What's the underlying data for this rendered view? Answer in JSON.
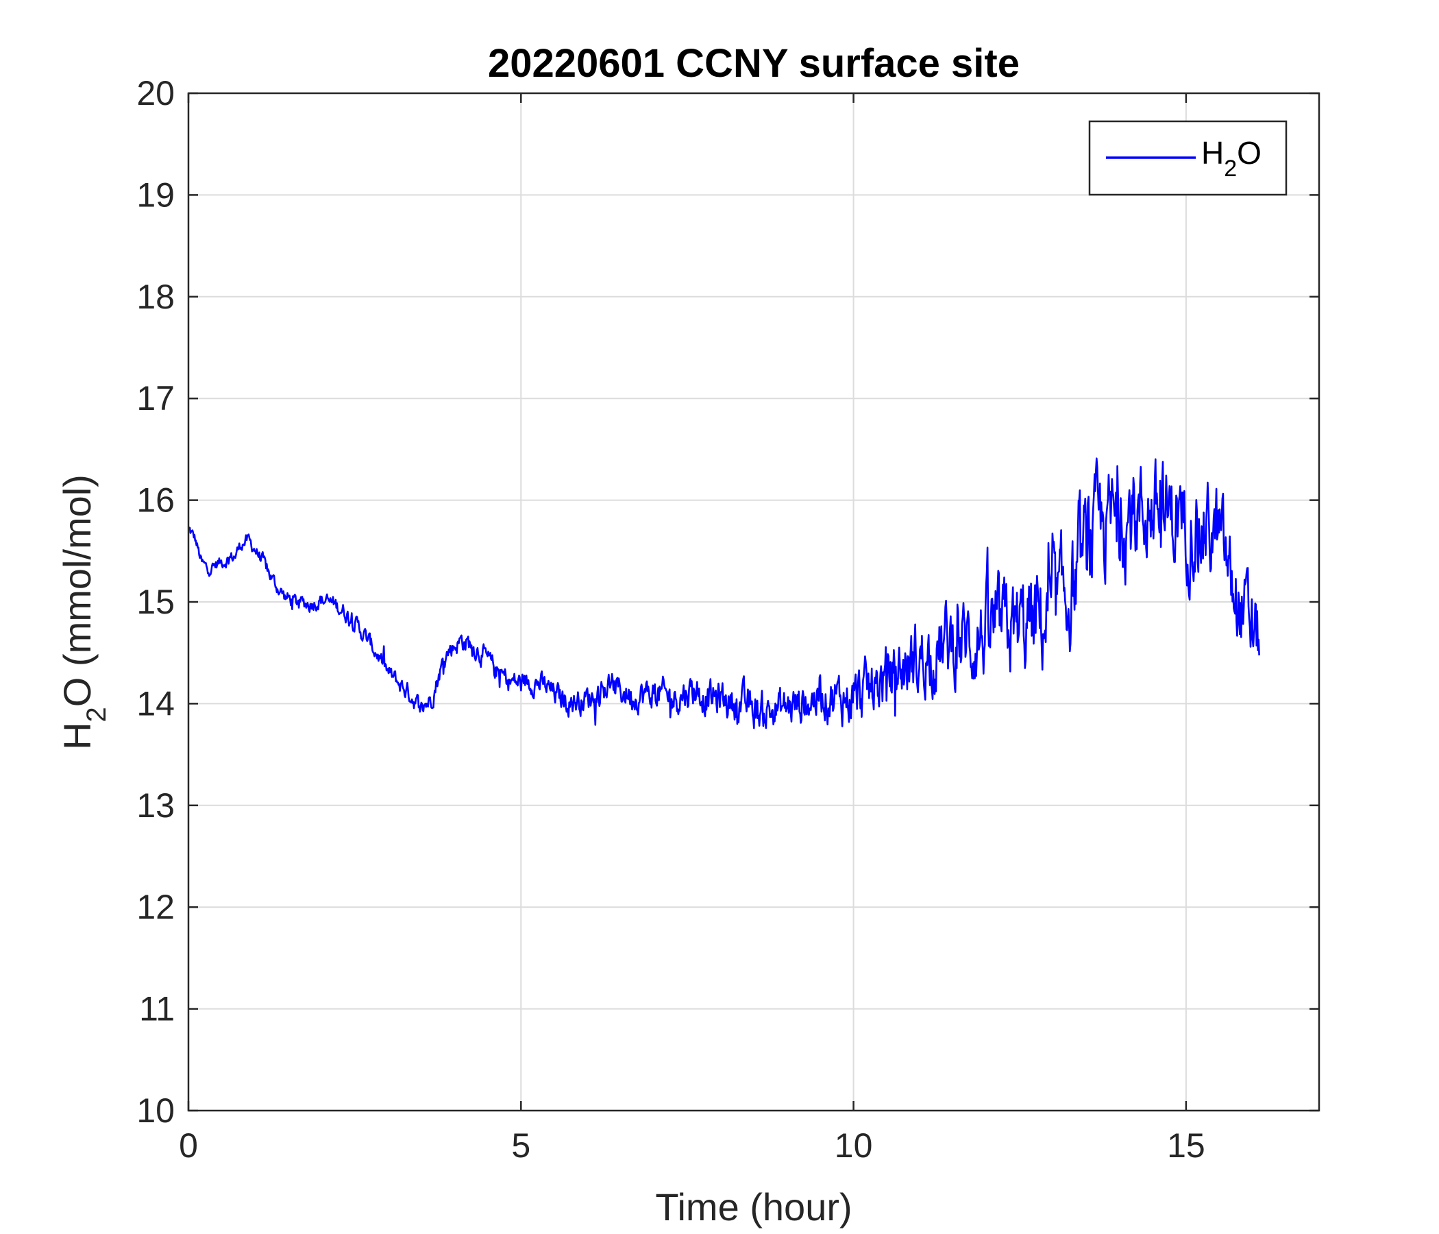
{
  "chart_data": {
    "type": "line",
    "title": "20220601 CCNY surface site",
    "xlabel": "Time (hour)",
    "ylabel": {
      "main": "H",
      "sub": "2",
      "rest": "O (mmol/mol)"
    },
    "xlim": [
      0,
      17
    ],
    "ylim": [
      10,
      20
    ],
    "xticks": [
      0,
      5,
      10,
      15
    ],
    "yticks": [
      10,
      11,
      12,
      13,
      14,
      15,
      16,
      17,
      18,
      19,
      20
    ],
    "grid": true,
    "legend_position": "top-right",
    "series": [
      {
        "name": {
          "main": "H",
          "sub": "2",
          "rest": "O"
        },
        "color": "#0000ff",
        "noise_amplitude": [
          [
            0,
            0.05
          ],
          [
            3.5,
            0.08
          ],
          [
            5.5,
            0.1
          ],
          [
            9.5,
            0.18
          ],
          [
            11,
            0.3
          ],
          [
            13,
            0.45
          ],
          [
            15,
            0.4
          ],
          [
            16.1,
            0.35
          ]
        ],
        "points": [
          [
            0.0,
            15.72
          ],
          [
            0.1,
            15.62
          ],
          [
            0.2,
            15.38
          ],
          [
            0.3,
            15.32
          ],
          [
            0.45,
            15.38
          ],
          [
            0.6,
            15.42
          ],
          [
            0.7,
            15.45
          ],
          [
            0.8,
            15.58
          ],
          [
            0.9,
            15.6
          ],
          [
            1.0,
            15.52
          ],
          [
            1.1,
            15.42
          ],
          [
            1.2,
            15.3
          ],
          [
            1.3,
            15.18
          ],
          [
            1.45,
            15.05
          ],
          [
            1.6,
            15.0
          ],
          [
            1.8,
            14.98
          ],
          [
            2.0,
            15.02
          ],
          [
            2.2,
            14.98
          ],
          [
            2.35,
            14.9
          ],
          [
            2.5,
            14.8
          ],
          [
            2.7,
            14.62
          ],
          [
            2.85,
            14.48
          ],
          [
            3.0,
            14.3
          ],
          [
            3.2,
            14.18
          ],
          [
            3.35,
            14.08
          ],
          [
            3.5,
            13.95
          ],
          [
            3.65,
            14.05
          ],
          [
            3.75,
            14.25
          ],
          [
            3.85,
            14.45
          ],
          [
            3.95,
            14.55
          ],
          [
            4.1,
            14.62
          ],
          [
            4.25,
            14.58
          ],
          [
            4.4,
            14.5
          ],
          [
            4.55,
            14.38
          ],
          [
            4.7,
            14.28
          ],
          [
            4.85,
            14.22
          ],
          [
            5.0,
            14.2
          ],
          [
            5.2,
            14.22
          ],
          [
            5.4,
            14.15
          ],
          [
            5.6,
            14.05
          ],
          [
            5.8,
            14.02
          ],
          [
            6.0,
            14.05
          ],
          [
            6.2,
            14.12
          ],
          [
            6.35,
            14.2
          ],
          [
            6.5,
            14.12
          ],
          [
            6.7,
            14.08
          ],
          [
            7.0,
            14.1
          ],
          [
            7.3,
            14.05
          ],
          [
            7.6,
            14.15
          ],
          [
            7.8,
            14.05
          ],
          [
            8.0,
            14.05
          ],
          [
            8.3,
            14.0
          ],
          [
            8.6,
            13.92
          ],
          [
            8.9,
            13.95
          ],
          [
            9.2,
            14.0
          ],
          [
            9.5,
            14.08
          ],
          [
            9.8,
            14.05
          ],
          [
            10.0,
            14.05
          ],
          [
            10.3,
            14.15
          ],
          [
            10.6,
            14.3
          ],
          [
            10.9,
            14.4
          ],
          [
            11.2,
            14.5
          ],
          [
            11.5,
            14.6
          ],
          [
            11.8,
            14.62
          ],
          [
            12.0,
            14.7
          ],
          [
            12.3,
            14.72
          ],
          [
            12.6,
            14.75
          ],
          [
            12.9,
            14.85
          ],
          [
            13.1,
            14.95
          ],
          [
            13.3,
            15.15
          ],
          [
            13.5,
            15.5
          ],
          [
            13.7,
            15.72
          ],
          [
            13.9,
            15.8
          ],
          [
            14.1,
            15.82
          ],
          [
            14.3,
            15.88
          ],
          [
            14.5,
            15.9
          ],
          [
            14.7,
            15.85
          ],
          [
            14.9,
            15.82
          ],
          [
            15.1,
            15.75
          ],
          [
            15.3,
            15.7
          ],
          [
            15.5,
            15.65
          ],
          [
            15.6,
            15.4
          ],
          [
            15.7,
            15.15
          ],
          [
            15.8,
            14.95
          ],
          [
            15.9,
            14.85
          ],
          [
            16.0,
            14.7
          ],
          [
            16.1,
            14.62
          ]
        ]
      }
    ]
  }
}
